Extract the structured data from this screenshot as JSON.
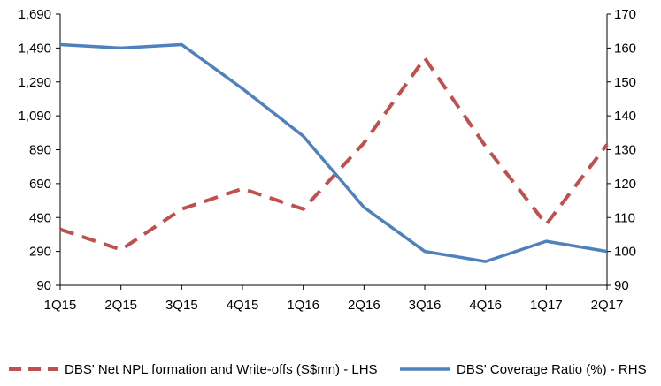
{
  "chart_data": {
    "type": "line",
    "categories": [
      "1Q15",
      "2Q15",
      "3Q15",
      "4Q15",
      "1Q16",
      "2Q16",
      "3Q16",
      "4Q16",
      "1Q17",
      "2Q17"
    ],
    "y_left": {
      "ylim": [
        90,
        1690
      ],
      "ticks": [
        90,
        290,
        490,
        690,
        890,
        1090,
        1290,
        1490,
        1690
      ],
      "tick_labels": [
        "90",
        "290",
        "490",
        "690",
        "890",
        "1,090",
        "1,290",
        "1,490",
        "1,690"
      ]
    },
    "y_right": {
      "ylim": [
        90,
        170
      ],
      "ticks": [
        90,
        100,
        110,
        120,
        130,
        140,
        150,
        160,
        170
      ],
      "tick_labels": [
        "90",
        "100",
        "110",
        "120",
        "130",
        "140",
        "150",
        "160",
        "170"
      ]
    },
    "series": [
      {
        "name": "DBS' Net NPL formation and Write-offs (S$mn) - LHS",
        "axis": "left",
        "style": "dashed",
        "color": "#c0504d",
        "values": [
          420,
          300,
          540,
          660,
          540,
          930,
          1430,
          910,
          450,
          920
        ]
      },
      {
        "name": "DBS' Coverage Ratio (%) - RHS",
        "axis": "right",
        "style": "solid",
        "color": "#4f81bd",
        "values": [
          161,
          160,
          161,
          148,
          134,
          113,
          100,
          97,
          103,
          100
        ]
      }
    ],
    "grid": false,
    "legend_position": "bottom"
  }
}
